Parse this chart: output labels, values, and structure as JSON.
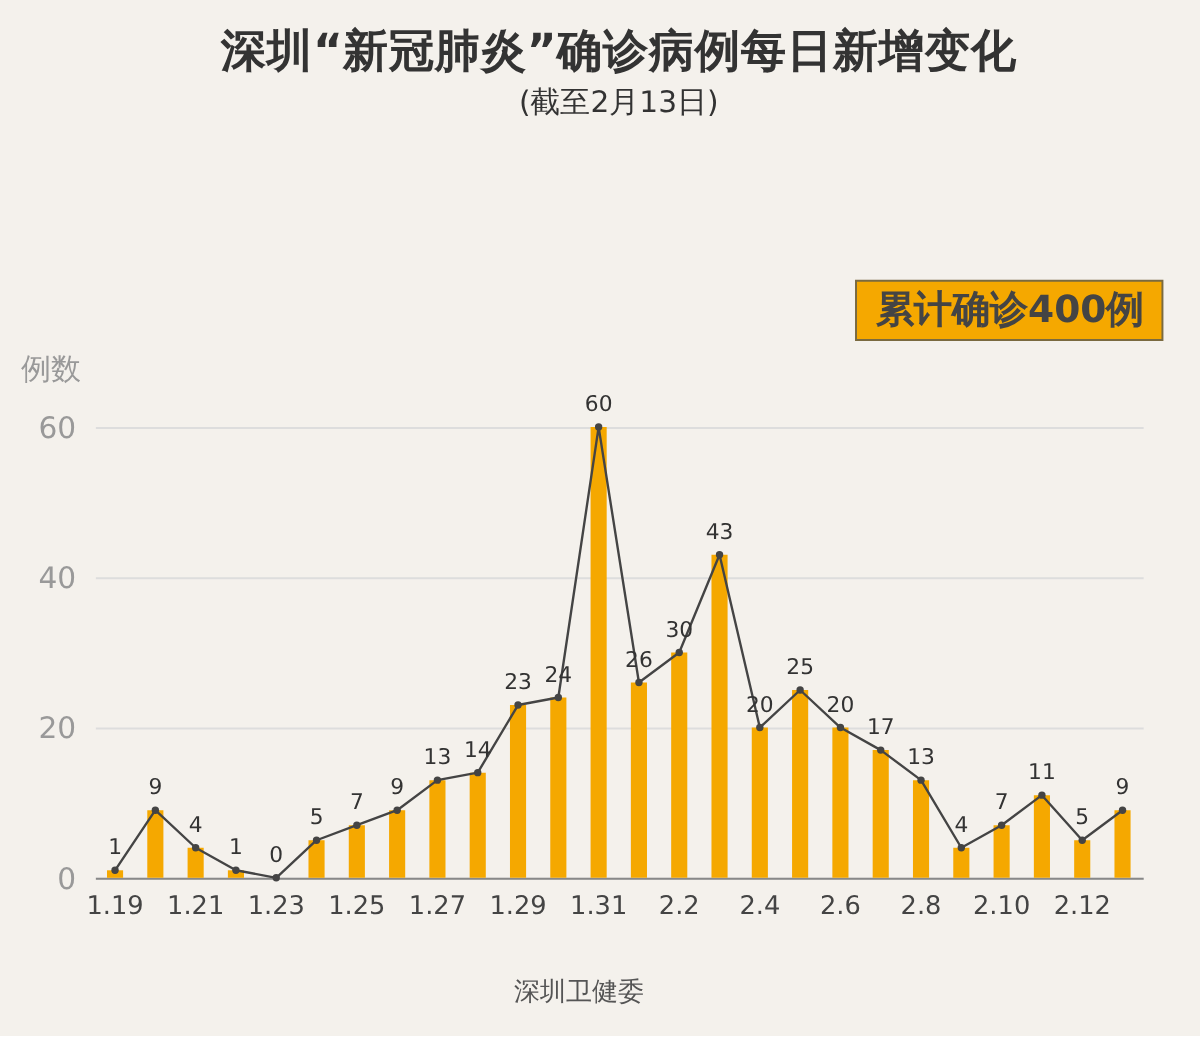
{
  "chart_data": {
    "type": "bar",
    "title": "深圳“新冠肺炎”确诊病例每日新增变化",
    "subtitle": "(截至2月13日)",
    "ylabel": "例数",
    "categories": [
      "1.19",
      null,
      "1.21",
      null,
      "1.23",
      null,
      "1.25",
      null,
      "1.27",
      null,
      "1.29",
      null,
      "1.31",
      null,
      "2.2",
      null,
      "2.4",
      null,
      "2.6",
      null,
      "2.8",
      null,
      "2.10",
      null,
      "2.12",
      null
    ],
    "series": [
      {
        "color": "#f5a800",
        "values": [
          1,
          9,
          4,
          1,
          0,
          5,
          7,
          9,
          13,
          14,
          23,
          24,
          60,
          26,
          30,
          43,
          20,
          25,
          20,
          17,
          13,
          4,
          7,
          11,
          5,
          9
        ]
      },
      {
        "type": "line",
        "color": "#444444",
        "marker": "circle",
        "values": [
          1,
          9,
          4,
          1,
          0,
          5,
          7,
          9,
          13,
          14,
          23,
          24,
          60,
          26,
          30,
          43,
          20,
          25,
          20,
          17,
          13,
          4,
          7,
          11,
          5,
          9
        ],
        "value_labels": [
          "1",
          "9",
          "4",
          "1",
          "0",
          "5",
          "7",
          "9",
          "13",
          "14",
          "23",
          "24",
          "60",
          "26",
          "30",
          "43",
          "20",
          "25",
          "20",
          "17",
          "13",
          "4",
          "7",
          "11",
          "5",
          "9"
        ]
      }
    ],
    "ylim": [
      0,
      60
    ],
    "yticks": [
      0,
      20,
      40,
      60
    ],
    "grid": "y",
    "annotations": [
      "累计确诊400例",
      "深圳卫健委"
    ]
  }
}
